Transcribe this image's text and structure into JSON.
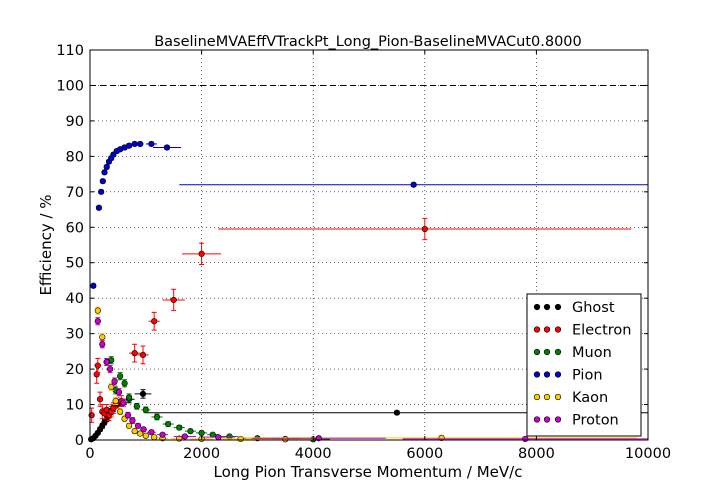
{
  "chart_data": {
    "type": "scatter",
    "title": "BaselineMVAEffVTrackPt_Long_Pion-BaselineMVACut0.8000",
    "xlabel": "Long Pion Transverse Momentum / MeV/c",
    "ylabel": "Efficiency / %",
    "xlim": [
      0,
      10000
    ],
    "ylim": [
      0,
      110
    ],
    "xticks": [
      0,
      2000,
      4000,
      6000,
      8000,
      10000
    ],
    "yticks": [
      0,
      10,
      20,
      30,
      40,
      50,
      60,
      70,
      80,
      90,
      100,
      110
    ],
    "reference_line": 100,
    "grid": true,
    "legend_position": "bottom-right",
    "series": [
      {
        "name": "Ghost",
        "color": "#000000",
        "points": [
          {
            "x": 20,
            "y": 0.2,
            "xerr": 20,
            "yerr": 0.3
          },
          {
            "x": 60,
            "y": 0.5,
            "xerr": 20,
            "yerr": 0.3
          },
          {
            "x": 100,
            "y": 1.2,
            "xerr": 20,
            "yerr": 0.4
          },
          {
            "x": 140,
            "y": 2.0,
            "xerr": 20,
            "yerr": 0.5
          },
          {
            "x": 180,
            "y": 3.0,
            "xerr": 20,
            "yerr": 0.6
          },
          {
            "x": 220,
            "y": 4.0,
            "xerr": 20,
            "yerr": 0.7
          },
          {
            "x": 260,
            "y": 5.0,
            "xerr": 20,
            "yerr": 0.7
          },
          {
            "x": 300,
            "y": 6.0,
            "xerr": 20,
            "yerr": 0.8
          },
          {
            "x": 340,
            "y": 7.0,
            "xerr": 20,
            "yerr": 0.8
          },
          {
            "x": 380,
            "y": 8.0,
            "xerr": 20,
            "yerr": 0.9
          },
          {
            "x": 420,
            "y": 9.0,
            "xerr": 20,
            "yerr": 0.9
          },
          {
            "x": 480,
            "y": 10.0,
            "xerr": 40,
            "yerr": 1.0
          },
          {
            "x": 560,
            "y": 10.5,
            "xerr": 40,
            "yerr": 1.0
          },
          {
            "x": 700,
            "y": 11.5,
            "xerr": 100,
            "yerr": 1.0
          },
          {
            "x": 950,
            "y": 13.0,
            "xerr": 150,
            "yerr": 1.2
          },
          {
            "x": 5500,
            "y": 7.7,
            "xerr": 4500,
            "yerr": 0.5
          }
        ]
      },
      {
        "name": "Electron",
        "color": "#ff0000",
        "points": [
          {
            "x": 30,
            "y": 7.0,
            "xerr": 30,
            "yerr": 2.0
          },
          {
            "x": 120,
            "y": 18.5,
            "xerr": 30,
            "yerr": 2.5
          },
          {
            "x": 140,
            "y": 21.0,
            "xerr": 30,
            "yerr": 2.0
          },
          {
            "x": 180,
            "y": 11.5,
            "xerr": 30,
            "yerr": 2.0
          },
          {
            "x": 220,
            "y": 8.0,
            "xerr": 30,
            "yerr": 2.0
          },
          {
            "x": 260,
            "y": 7.5,
            "xerr": 30,
            "yerr": 1.5
          },
          {
            "x": 300,
            "y": 8.5,
            "xerr": 30,
            "yerr": 1.5
          },
          {
            "x": 340,
            "y": 7.0,
            "xerr": 30,
            "yerr": 1.5
          },
          {
            "x": 380,
            "y": 8.0,
            "xerr": 30,
            "yerr": 1.5
          },
          {
            "x": 420,
            "y": 9.0,
            "xerr": 30,
            "yerr": 1.5
          },
          {
            "x": 480,
            "y": 10.5,
            "xerr": 40,
            "yerr": 1.5
          },
          {
            "x": 560,
            "y": 11.0,
            "xerr": 40,
            "yerr": 1.5
          },
          {
            "x": 800,
            "y": 24.5,
            "xerr": 100,
            "yerr": 2.5
          },
          {
            "x": 950,
            "y": 24.0,
            "xerr": 100,
            "yerr": 2.5
          },
          {
            "x": 1150,
            "y": 33.5,
            "xerr": 100,
            "yerr": 2.5
          },
          {
            "x": 1500,
            "y": 39.5,
            "xerr": 200,
            "yerr": 3.0
          },
          {
            "x": 2000,
            "y": 52.5,
            "xerr": 350,
            "yerr": 3.0
          },
          {
            "x": 6000,
            "y": 59.5,
            "xerr": 3700,
            "yerr": 3.0
          }
        ]
      },
      {
        "name": "Muon",
        "color": "#008000",
        "points": [
          {
            "x": 300,
            "y": 22.0,
            "xerr": 40,
            "yerr": 1.0
          },
          {
            "x": 380,
            "y": 22.5,
            "xerr": 40,
            "yerr": 1.0
          },
          {
            "x": 460,
            "y": 14.0,
            "xerr": 40,
            "yerr": 1.0
          },
          {
            "x": 540,
            "y": 18.0,
            "xerr": 40,
            "yerr": 1.0
          },
          {
            "x": 620,
            "y": 16.0,
            "xerr": 40,
            "yerr": 1.0
          },
          {
            "x": 700,
            "y": 12.0,
            "xerr": 40,
            "yerr": 1.0
          },
          {
            "x": 840,
            "y": 9.5,
            "xerr": 60,
            "yerr": 0.8
          },
          {
            "x": 1000,
            "y": 8.5,
            "xerr": 80,
            "yerr": 0.8
          },
          {
            "x": 1200,
            "y": 6.5,
            "xerr": 100,
            "yerr": 0.8
          },
          {
            "x": 1400,
            "y": 4.5,
            "xerr": 100,
            "yerr": 0.6
          },
          {
            "x": 1600,
            "y": 3.5,
            "xerr": 100,
            "yerr": 0.6
          },
          {
            "x": 1800,
            "y": 2.5,
            "xerr": 100,
            "yerr": 0.5
          },
          {
            "x": 2000,
            "y": 2.0,
            "xerr": 100,
            "yerr": 0.5
          },
          {
            "x": 2200,
            "y": 1.5,
            "xerr": 100,
            "yerr": 0.4
          },
          {
            "x": 2500,
            "y": 1.0,
            "xerr": 150,
            "yerr": 0.3
          },
          {
            "x": 3000,
            "y": 0.5,
            "xerr": 250,
            "yerr": 0.3
          },
          {
            "x": 3500,
            "y": 0.3,
            "xerr": 250,
            "yerr": 0.2
          },
          {
            "x": 4000,
            "y": 0.2,
            "xerr": 300,
            "yerr": 0.2
          }
        ]
      },
      {
        "name": "Pion",
        "color": "#0000cc",
        "points": [
          {
            "x": 60,
            "y": 43.5,
            "xerr": 40,
            "yerr": 0.5
          },
          {
            "x": 160,
            "y": 65.5,
            "xerr": 20,
            "yerr": 0.5
          },
          {
            "x": 200,
            "y": 70.0,
            "xerr": 20,
            "yerr": 0.5
          },
          {
            "x": 230,
            "y": 73.0,
            "xerr": 20,
            "yerr": 0.5
          },
          {
            "x": 260,
            "y": 75.5,
            "xerr": 20,
            "yerr": 0.5
          },
          {
            "x": 300,
            "y": 77.0,
            "xerr": 20,
            "yerr": 0.5
          },
          {
            "x": 340,
            "y": 78.5,
            "xerr": 20,
            "yerr": 0.5
          },
          {
            "x": 380,
            "y": 79.5,
            "xerr": 20,
            "yerr": 0.5
          },
          {
            "x": 420,
            "y": 80.5,
            "xerr": 20,
            "yerr": 0.5
          },
          {
            "x": 480,
            "y": 81.5,
            "xerr": 40,
            "yerr": 0.5
          },
          {
            "x": 540,
            "y": 82.0,
            "xerr": 40,
            "yerr": 0.5
          },
          {
            "x": 620,
            "y": 82.5,
            "xerr": 40,
            "yerr": 0.5
          },
          {
            "x": 700,
            "y": 83.0,
            "xerr": 50,
            "yerr": 0.5
          },
          {
            "x": 800,
            "y": 83.5,
            "xerr": 60,
            "yerr": 0.5
          },
          {
            "x": 900,
            "y": 83.5,
            "xerr": 60,
            "yerr": 0.5
          },
          {
            "x": 1100,
            "y": 83.5,
            "xerr": 100,
            "yerr": 0.5
          },
          {
            "x": 1380,
            "y": 82.5,
            "xerr": 250,
            "yerr": 0.5
          },
          {
            "x": 5800,
            "y": 72.0,
            "xerr": 4200,
            "yerr": 0.5
          }
        ]
      },
      {
        "name": "Kaon",
        "color": "#ffcc00",
        "points": [
          {
            "x": 140,
            "y": 36.5,
            "xerr": 30,
            "yerr": 1.0
          },
          {
            "x": 220,
            "y": 29.0,
            "xerr": 30,
            "yerr": 1.0
          },
          {
            "x": 300,
            "y": 22.0,
            "xerr": 30,
            "yerr": 1.0
          },
          {
            "x": 380,
            "y": 15.0,
            "xerr": 30,
            "yerr": 1.0
          },
          {
            "x": 460,
            "y": 11.0,
            "xerr": 30,
            "yerr": 1.0
          },
          {
            "x": 540,
            "y": 8.0,
            "xerr": 40,
            "yerr": 0.8
          },
          {
            "x": 620,
            "y": 6.0,
            "xerr": 40,
            "yerr": 0.8
          },
          {
            "x": 700,
            "y": 4.0,
            "xerr": 40,
            "yerr": 0.6
          },
          {
            "x": 800,
            "y": 2.5,
            "xerr": 50,
            "yerr": 0.5
          },
          {
            "x": 900,
            "y": 1.8,
            "xerr": 50,
            "yerr": 0.4
          },
          {
            "x": 1000,
            "y": 1.2,
            "xerr": 60,
            "yerr": 0.3
          },
          {
            "x": 1150,
            "y": 0.8,
            "xerr": 80,
            "yerr": 0.3
          },
          {
            "x": 1300,
            "y": 0.5,
            "xerr": 100,
            "yerr": 0.3
          },
          {
            "x": 1600,
            "y": 0.4,
            "xerr": 150,
            "yerr": 0.2
          },
          {
            "x": 2000,
            "y": 0.3,
            "xerr": 200,
            "yerr": 0.2
          },
          {
            "x": 2700,
            "y": 0.3,
            "xerr": 400,
            "yerr": 0.2
          },
          {
            "x": 3500,
            "y": 0.2,
            "xerr": 500,
            "yerr": 0.2
          },
          {
            "x": 6300,
            "y": 0.6,
            "xerr": 3500,
            "yerr": 0.3
          }
        ]
      },
      {
        "name": "Proton",
        "color": "#cc00cc",
        "points": [
          {
            "x": 140,
            "y": 33.5,
            "xerr": 30,
            "yerr": 1.0
          },
          {
            "x": 220,
            "y": 27.0,
            "xerr": 30,
            "yerr": 1.0
          },
          {
            "x": 300,
            "y": 22.0,
            "xerr": 30,
            "yerr": 1.0
          },
          {
            "x": 360,
            "y": 20.0,
            "xerr": 30,
            "yerr": 1.0
          },
          {
            "x": 440,
            "y": 16.5,
            "xerr": 30,
            "yerr": 1.0
          },
          {
            "x": 520,
            "y": 13.5,
            "xerr": 40,
            "yerr": 1.0
          },
          {
            "x": 600,
            "y": 10.5,
            "xerr": 40,
            "yerr": 1.0
          },
          {
            "x": 680,
            "y": 7.0,
            "xerr": 40,
            "yerr": 0.8
          },
          {
            "x": 760,
            "y": 5.5,
            "xerr": 50,
            "yerr": 0.8
          },
          {
            "x": 860,
            "y": 4.0,
            "xerr": 50,
            "yerr": 0.6
          },
          {
            "x": 960,
            "y": 3.0,
            "xerr": 60,
            "yerr": 0.5
          },
          {
            "x": 1100,
            "y": 2.2,
            "xerr": 80,
            "yerr": 0.5
          },
          {
            "x": 1300,
            "y": 1.5,
            "xerr": 100,
            "yerr": 0.4
          },
          {
            "x": 1700,
            "y": 1.0,
            "xerr": 200,
            "yerr": 0.3
          },
          {
            "x": 2300,
            "y": 0.8,
            "xerr": 300,
            "yerr": 0.3
          },
          {
            "x": 4100,
            "y": 0.5,
            "xerr": 1200,
            "yerr": 0.2
          },
          {
            "x": 7800,
            "y": 0.3,
            "xerr": 2200,
            "yerr": 0.2
          }
        ]
      }
    ]
  }
}
